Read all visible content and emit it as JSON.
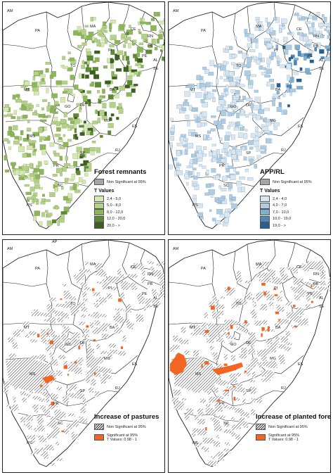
{
  "colors": {
    "gray_ns": "#a6a6a6",
    "orange_sig": "#f26522",
    "green": [
      "#d4e8b0",
      "#b3d187",
      "#8db659",
      "#5f8a35",
      "#3b5f1f"
    ],
    "blue": [
      "#d6e6f2",
      "#aecde3",
      "#7fafd1",
      "#4c88b8",
      "#245f95"
    ]
  },
  "state_labels": [
    "AM",
    "PA",
    "MA",
    "CE",
    "RN",
    "PB",
    "PE",
    "AL",
    "SE",
    "TO",
    "PI",
    "BA",
    "MT",
    "GO",
    "DF",
    "MG",
    "ES",
    "MS",
    "SP",
    "RJ",
    "PR",
    "SC",
    "RS",
    "AP"
  ],
  "panels": [
    {
      "title": "Forest remnants",
      "ns_label": "Non Significant at 95%",
      "tvalues_title": "T Values",
      "classes": [
        "2,4 - 5,0",
        "5,0 - 8,0",
        "8,0 - 12,0",
        "12,0 - 20,0",
        "20,0 - >"
      ]
    },
    {
      "title": "APP/RL",
      "ns_label": "Non Significant at 95%",
      "tvalues_title": "T Values",
      "classes": [
        "2,4 - 4,0",
        "4,0 - 7,0",
        "7,0 - 10,0",
        "10,0 - 19,0",
        "19,0 - >"
      ]
    },
    {
      "title": "Increase of pastures",
      "ns_label": "Non Significant at 95%",
      "sig_label": "Significant at 95%",
      "sig_tvalues": "T Values: 0.98 - 1"
    },
    {
      "title": "Increase of planted forest",
      "ns_label": "Non Significant at 95%",
      "sig_label": "Significant at 95%",
      "sig_tvalues": "T Values: 0.98 - 1"
    }
  ]
}
